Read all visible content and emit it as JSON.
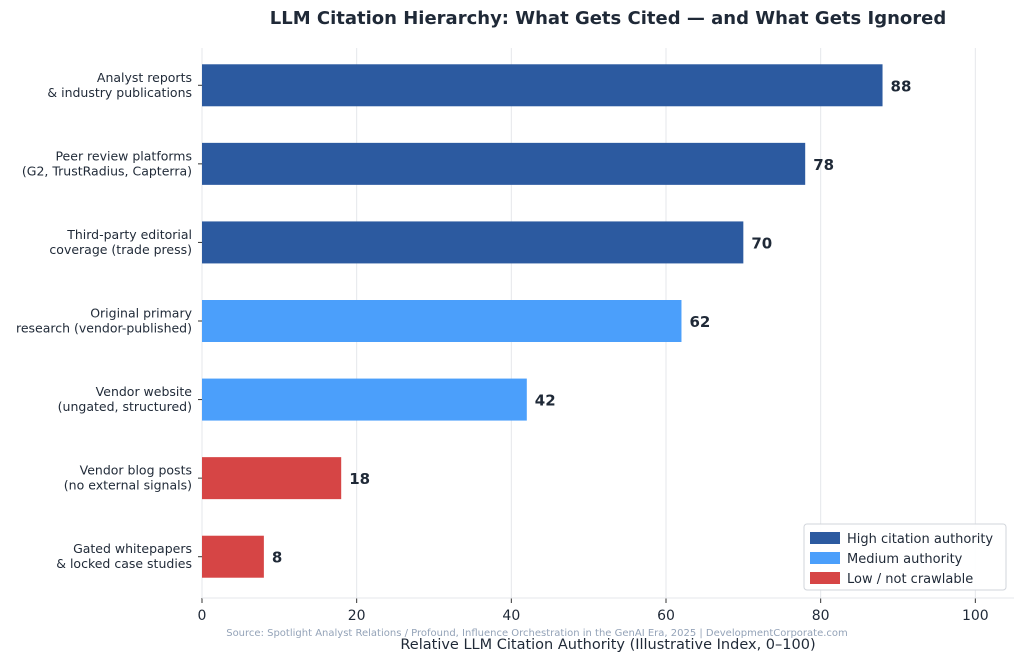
{
  "chart_data": {
    "type": "bar",
    "orientation": "horizontal",
    "title": "LLM Citation Hierarchy: What Gets Cited — and What Gets Ignored",
    "xlabel": "Relative LLM Citation Authority (Illustrative Index, 0–100)",
    "ylabel": "",
    "xlim": [
      0,
      105
    ],
    "xticks": [
      0,
      20,
      40,
      60,
      80,
      100
    ],
    "grid": "vertical",
    "legend_position": "bottom-right",
    "source": "Source: Spotlight Analyst Relations / Profound, Influence Orchestration in the GenAI Era, 2025 | DevelopmentCorporate.com",
    "legend": [
      {
        "key": "high",
        "label": "High citation authority",
        "color": "#2c5aa0"
      },
      {
        "key": "medium",
        "label": "Medium authority",
        "color": "#4b9ffb"
      },
      {
        "key": "low",
        "label": "Low / not crawlable",
        "color": "#d64545"
      }
    ],
    "bars": [
      {
        "label_lines": [
          "Analyst reports",
          "& industry publications"
        ],
        "value": 88,
        "tier": "high"
      },
      {
        "label_lines": [
          "Peer review platforms",
          "(G2, TrustRadius, Capterra)"
        ],
        "value": 78,
        "tier": "high"
      },
      {
        "label_lines": [
          "Third-party editorial",
          "coverage (trade press)"
        ],
        "value": 70,
        "tier": "high"
      },
      {
        "label_lines": [
          "Original primary",
          "research (vendor-published)"
        ],
        "value": 62,
        "tier": "medium"
      },
      {
        "label_lines": [
          "Vendor website",
          "(ungated, structured)"
        ],
        "value": 42,
        "tier": "medium"
      },
      {
        "label_lines": [
          "Vendor blog posts",
          "(no external signals)"
        ],
        "value": 18,
        "tier": "low"
      },
      {
        "label_lines": [
          "Gated whitepapers",
          "& locked case studies"
        ],
        "value": 8,
        "tier": "low"
      }
    ]
  }
}
